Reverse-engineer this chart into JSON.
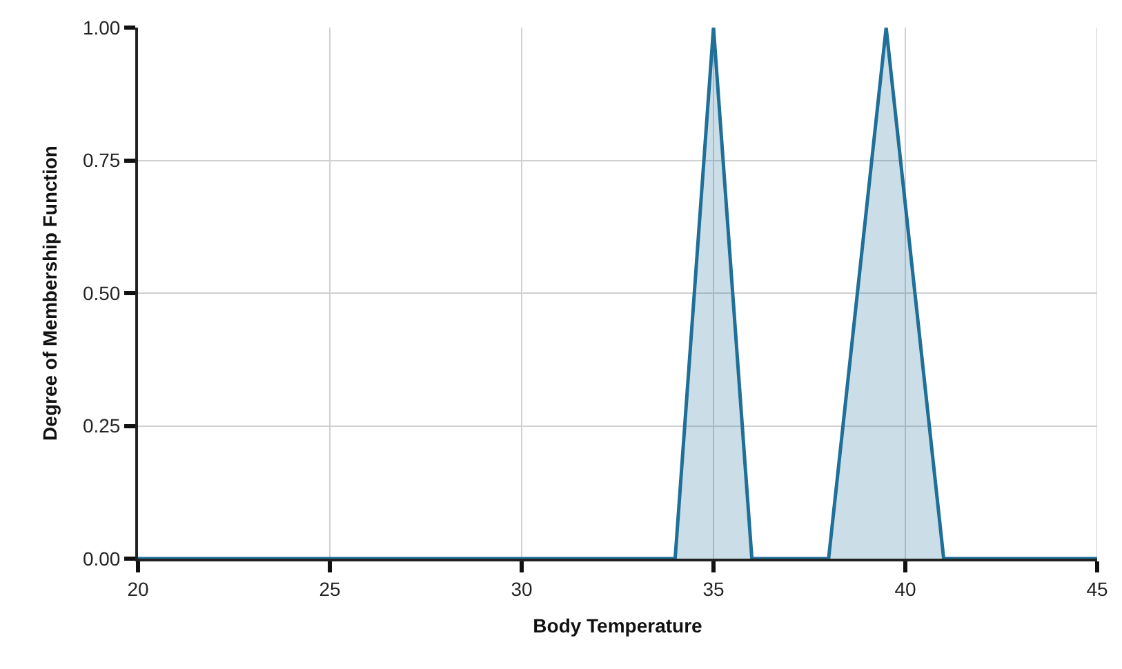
{
  "chart_data": {
    "type": "area",
    "xlabel": "Body Temperature",
    "ylabel": "Degree of Membership Function",
    "x": [
      20,
      34,
      35,
      36,
      38,
      39.5,
      41,
      45
    ],
    "series": [
      {
        "color": "#1f6f99",
        "values": [
          0,
          0,
          1,
          0,
          0,
          1,
          0,
          0
        ]
      }
    ],
    "xlim": [
      20,
      45
    ],
    "xticks": [
      20,
      25,
      30,
      35,
      40,
      45
    ],
    "ylim": [
      0,
      1
    ],
    "yticks": [
      {
        "value": 0,
        "label": "0.00"
      },
      {
        "value": 0.25,
        "label": "0.25"
      },
      {
        "value": 0.5,
        "label": "0.50"
      },
      {
        "value": 0.75,
        "label": "0.75"
      },
      {
        "value": 1,
        "label": "1.00"
      }
    ],
    "grid": true
  }
}
